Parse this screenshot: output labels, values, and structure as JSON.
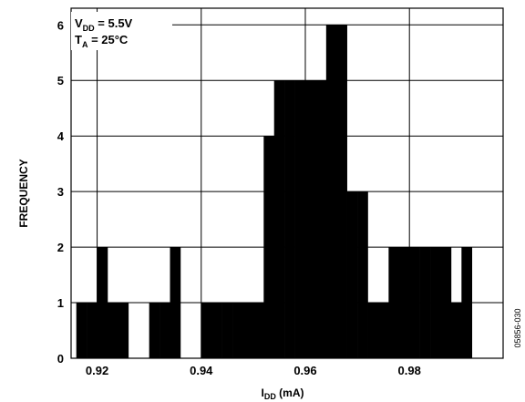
{
  "chart_data": {
    "type": "bar",
    "title": "",
    "xlabel": {
      "main": "I",
      "sub": "DD",
      "unit": " (mA)"
    },
    "ylabel": "FREQUENCY",
    "xlim": [
      0.915,
      0.998
    ],
    "ylim": [
      0,
      6.3
    ],
    "xticks": [
      "0.92",
      "0.94",
      "0.96",
      "0.98"
    ],
    "xtick_values": [
      0.92,
      0.94,
      0.96,
      0.98
    ],
    "yticks": [
      "0",
      "1",
      "2",
      "3",
      "4",
      "5",
      "6"
    ],
    "ytick_values": [
      0,
      1,
      2,
      3,
      4,
      5,
      6
    ],
    "bin_width": 0.002,
    "bins": [
      {
        "x0": 0.916,
        "value": 1
      },
      {
        "x0": 0.918,
        "value": 1
      },
      {
        "x0": 0.92,
        "value": 2
      },
      {
        "x0": 0.922,
        "value": 1
      },
      {
        "x0": 0.924,
        "value": 1
      },
      {
        "x0": 0.926,
        "value": 0
      },
      {
        "x0": 0.928,
        "value": 0
      },
      {
        "x0": 0.93,
        "value": 1
      },
      {
        "x0": 0.932,
        "value": 1
      },
      {
        "x0": 0.934,
        "value": 2
      },
      {
        "x0": 0.936,
        "value": 0
      },
      {
        "x0": 0.938,
        "value": 0
      },
      {
        "x0": 0.94,
        "value": 1
      },
      {
        "x0": 0.942,
        "value": 1
      },
      {
        "x0": 0.944,
        "value": 1
      },
      {
        "x0": 0.946,
        "value": 1
      },
      {
        "x0": 0.948,
        "value": 1
      },
      {
        "x0": 0.95,
        "value": 1
      },
      {
        "x0": 0.952,
        "value": 4
      },
      {
        "x0": 0.954,
        "value": 5
      },
      {
        "x0": 0.956,
        "value": 5
      },
      {
        "x0": 0.958,
        "value": 5
      },
      {
        "x0": 0.96,
        "value": 5
      },
      {
        "x0": 0.962,
        "value": 5
      },
      {
        "x0": 0.964,
        "value": 6
      },
      {
        "x0": 0.966,
        "value": 6
      },
      {
        "x0": 0.968,
        "value": 3
      },
      {
        "x0": 0.97,
        "value": 3
      },
      {
        "x0": 0.972,
        "value": 1
      },
      {
        "x0": 0.974,
        "value": 1
      },
      {
        "x0": 0.976,
        "value": 2
      },
      {
        "x0": 0.978,
        "value": 2
      },
      {
        "x0": 0.98,
        "value": 2
      },
      {
        "x0": 0.982,
        "value": 2
      },
      {
        "x0": 0.984,
        "value": 2
      },
      {
        "x0": 0.986,
        "value": 2
      },
      {
        "x0": 0.988,
        "value": 1
      },
      {
        "x0": 0.99,
        "value": 2
      }
    ],
    "conditions": [
      {
        "main": "V",
        "sub": "DD",
        "rest": " = 5.5V"
      },
      {
        "main": "T",
        "sub": "A",
        "rest": " = 25°C"
      }
    ],
    "figure_id": "05856-030",
    "grid": true,
    "legend": "top-left",
    "bar_color": "#000000"
  }
}
